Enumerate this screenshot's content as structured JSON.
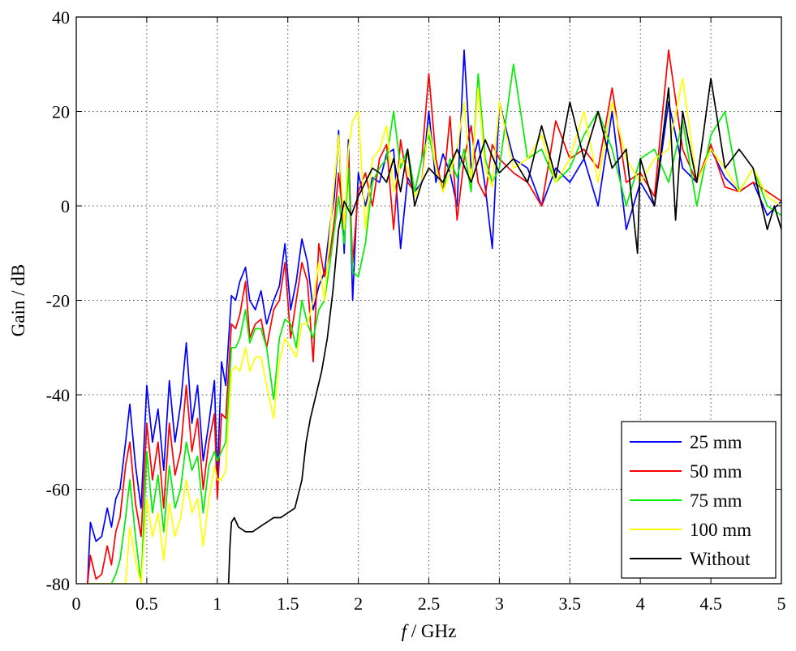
{
  "chart_data": {
    "type": "line",
    "title": "",
    "xlabel_italic": "f",
    "xlabel_rest": " / GHz",
    "ylabel": "Gain / dB",
    "xlim": [
      0,
      5
    ],
    "ylim": [
      -80,
      40
    ],
    "grid": true,
    "legend_placement": "bottom-right",
    "x_ticks": [
      0,
      0.5,
      1,
      1.5,
      2,
      2.5,
      3,
      3.5,
      4,
      4.5,
      5
    ],
    "x_tick_labels": [
      "0",
      "0.5",
      "1",
      "1.5",
      "2",
      "2.5",
      "3",
      "3.5",
      "4",
      "4.5",
      "5"
    ],
    "y_ticks": [
      -80,
      -60,
      -40,
      -20,
      0,
      20,
      40
    ],
    "y_tick_labels": [
      "-80",
      "-60",
      "-40",
      "-20",
      "0",
      "20",
      "40"
    ],
    "series": [
      {
        "name": "25 mm",
        "color": "#0000ff",
        "x": [
          0.08,
          0.1,
          0.14,
          0.18,
          0.22,
          0.25,
          0.28,
          0.31,
          0.35,
          0.38,
          0.42,
          0.46,
          0.5,
          0.54,
          0.58,
          0.62,
          0.66,
          0.7,
          0.74,
          0.78,
          0.82,
          0.86,
          0.9,
          0.94,
          0.98,
          1.0,
          1.03,
          1.06,
          1.1,
          1.13,
          1.16,
          1.2,
          1.23,
          1.27,
          1.31,
          1.35,
          1.4,
          1.44,
          1.48,
          1.52,
          1.56,
          1.6,
          1.64,
          1.68,
          1.72,
          1.76,
          1.8,
          1.83,
          1.86,
          1.9,
          1.93,
          1.96,
          2.0,
          2.05,
          2.1,
          2.15,
          2.2,
          2.25,
          2.3,
          2.35,
          2.4,
          2.45,
          2.5,
          2.55,
          2.6,
          2.65,
          2.7,
          2.75,
          2.8,
          2.85,
          2.9,
          2.95,
          3.0,
          3.1,
          3.2,
          3.3,
          3.4,
          3.5,
          3.6,
          3.7,
          3.8,
          3.9,
          4.0,
          4.1,
          4.2,
          4.3,
          4.4,
          4.5,
          4.6,
          4.7,
          4.8,
          4.9,
          5.0
        ],
        "y": [
          -80,
          -67,
          -71,
          -70,
          -64,
          -68,
          -62,
          -60,
          -50,
          -42,
          -55,
          -64,
          -38,
          -50,
          -43,
          -56,
          -37,
          -50,
          -42,
          -29,
          -46,
          -38,
          -54,
          -46,
          -37,
          -58,
          -33,
          -38,
          -19,
          -20,
          -16,
          -13,
          -20,
          -22,
          -18,
          -25,
          -20,
          -17,
          -8,
          -22,
          -16,
          -7,
          -12,
          -22,
          -17,
          -14,
          -4,
          2,
          16,
          -10,
          14,
          -20,
          7,
          0,
          6,
          5,
          11,
          12,
          -9,
          6,
          3,
          5,
          20,
          5,
          11,
          7,
          0,
          33,
          8,
          14,
          4,
          -9,
          22,
          10,
          8,
          0,
          8,
          5,
          10,
          0,
          20,
          -5,
          5,
          0,
          22,
          8,
          5,
          12,
          6,
          3,
          5,
          -2,
          1
        ]
      },
      {
        "name": "50 mm",
        "color": "#ff0000",
        "x": [
          0.08,
          0.1,
          0.14,
          0.18,
          0.22,
          0.25,
          0.28,
          0.31,
          0.35,
          0.38,
          0.42,
          0.46,
          0.5,
          0.54,
          0.58,
          0.62,
          0.66,
          0.7,
          0.74,
          0.78,
          0.82,
          0.86,
          0.9,
          0.94,
          0.98,
          1.0,
          1.03,
          1.06,
          1.1,
          1.13,
          1.16,
          1.2,
          1.23,
          1.27,
          1.31,
          1.35,
          1.4,
          1.44,
          1.48,
          1.52,
          1.56,
          1.6,
          1.64,
          1.68,
          1.72,
          1.76,
          1.8,
          1.83,
          1.86,
          1.9,
          1.93,
          1.96,
          2.0,
          2.05,
          2.1,
          2.15,
          2.2,
          2.25,
          2.3,
          2.35,
          2.4,
          2.45,
          2.5,
          2.55,
          2.6,
          2.65,
          2.7,
          2.75,
          2.8,
          2.85,
          2.9,
          2.95,
          3.0,
          3.1,
          3.2,
          3.3,
          3.4,
          3.5,
          3.6,
          3.7,
          3.8,
          3.9,
          4.0,
          4.1,
          4.2,
          4.3,
          4.4,
          4.5,
          4.6,
          4.7,
          4.8,
          4.9,
          5.0
        ],
        "y": [
          -80,
          -74,
          -79,
          -78,
          -72,
          -76,
          -69,
          -66,
          -55,
          -50,
          -63,
          -70,
          -46,
          -58,
          -50,
          -64,
          -46,
          -57,
          -52,
          -38,
          -52,
          -45,
          -60,
          -50,
          -44,
          -62,
          -44,
          -45,
          -25,
          -26,
          -23,
          -16,
          -28,
          -25,
          -24,
          -30,
          -22,
          -20,
          -12,
          -28,
          -20,
          -12,
          -16,
          -33,
          -8,
          -15,
          -10,
          -3,
          7,
          -5,
          11,
          -12,
          3,
          7,
          0,
          10,
          13,
          -5,
          14,
          5,
          3,
          10,
          28,
          10,
          3,
          19,
          -3,
          10,
          17,
          5,
          2,
          13,
          10,
          7,
          5,
          0,
          18,
          10,
          12,
          8,
          25,
          5,
          7,
          2,
          33,
          12,
          5,
          13,
          4,
          3,
          5,
          3,
          1
        ]
      },
      {
        "name": "75 mm",
        "color": "#00ee00",
        "x": [
          0.08,
          0.1,
          0.14,
          0.18,
          0.22,
          0.25,
          0.28,
          0.31,
          0.35,
          0.38,
          0.42,
          0.46,
          0.5,
          0.54,
          0.58,
          0.62,
          0.66,
          0.7,
          0.74,
          0.78,
          0.82,
          0.86,
          0.9,
          0.94,
          0.98,
          1.0,
          1.03,
          1.06,
          1.1,
          1.13,
          1.16,
          1.2,
          1.23,
          1.27,
          1.31,
          1.35,
          1.4,
          1.44,
          1.48,
          1.52,
          1.56,
          1.6,
          1.64,
          1.68,
          1.72,
          1.76,
          1.8,
          1.83,
          1.86,
          1.9,
          1.93,
          1.96,
          2.0,
          2.05,
          2.1,
          2.15,
          2.2,
          2.25,
          2.3,
          2.35,
          2.4,
          2.45,
          2.5,
          2.55,
          2.6,
          2.65,
          2.7,
          2.75,
          2.8,
          2.85,
          2.9,
          2.95,
          3.0,
          3.1,
          3.2,
          3.3,
          3.4,
          3.5,
          3.6,
          3.7,
          3.8,
          3.9,
          4.0,
          4.1,
          4.2,
          4.3,
          4.4,
          4.5,
          4.6,
          4.7,
          4.8,
          4.9,
          5.0
        ],
        "y": [
          -80,
          -80,
          -80,
          -80,
          -80,
          -80,
          -78,
          -75,
          -66,
          -58,
          -70,
          -80,
          -52,
          -65,
          -57,
          -69,
          -55,
          -64,
          -60,
          -50,
          -56,
          -53,
          -65,
          -55,
          -52,
          -54,
          -52,
          -50,
          -30,
          -30,
          -28,
          -22,
          -29,
          -26,
          -26,
          -30,
          -41,
          -28,
          -24,
          -25,
          -30,
          -20,
          -25,
          -28,
          -22,
          -20,
          -12,
          -5,
          2,
          -8,
          8,
          -14,
          -15,
          -8,
          5,
          8,
          10,
          20,
          8,
          12,
          3,
          10,
          15,
          8,
          3,
          10,
          6,
          12,
          3,
          28,
          10,
          5,
          8,
          30,
          10,
          12,
          5,
          8,
          15,
          20,
          12,
          0,
          10,
          12,
          5,
          18,
          0,
          15,
          20,
          3,
          8,
          0,
          -2
        ]
      },
      {
        "name": "100 mm",
        "color": "#ffff00",
        "x": [
          0.08,
          0.1,
          0.14,
          0.18,
          0.22,
          0.25,
          0.28,
          0.31,
          0.35,
          0.38,
          0.42,
          0.46,
          0.5,
          0.54,
          0.58,
          0.62,
          0.66,
          0.7,
          0.74,
          0.78,
          0.82,
          0.86,
          0.9,
          0.94,
          0.98,
          1.0,
          1.03,
          1.06,
          1.1,
          1.13,
          1.16,
          1.2,
          1.23,
          1.27,
          1.31,
          1.35,
          1.4,
          1.44,
          1.48,
          1.52,
          1.56,
          1.6,
          1.64,
          1.68,
          1.72,
          1.76,
          1.8,
          1.83,
          1.86,
          1.9,
          1.93,
          1.96,
          2.0,
          2.05,
          2.1,
          2.15,
          2.2,
          2.25,
          2.3,
          2.35,
          2.4,
          2.45,
          2.5,
          2.55,
          2.6,
          2.65,
          2.7,
          2.75,
          2.8,
          2.85,
          2.9,
          2.95,
          3.0,
          3.1,
          3.2,
          3.3,
          3.4,
          3.5,
          3.6,
          3.7,
          3.8,
          3.9,
          4.0,
          4.1,
          4.2,
          4.3,
          4.4,
          4.5,
          4.6,
          4.7,
          4.8,
          4.9,
          5.0
        ],
        "y": [
          -80,
          -80,
          -80,
          -80,
          -80,
          -80,
          -80,
          -80,
          -80,
          -68,
          -75,
          -80,
          -62,
          -70,
          -65,
          -75,
          -63,
          -70,
          -66,
          -58,
          -65,
          -62,
          -72,
          -62,
          -55,
          -58,
          -58,
          -56,
          -35,
          -34,
          -35,
          -30,
          -35,
          -32,
          -32,
          -38,
          -45,
          -33,
          -28,
          -30,
          -32,
          -25,
          -25,
          -20,
          -12,
          -20,
          -5,
          5,
          15,
          -5,
          12,
          18,
          20,
          -5,
          10,
          12,
          17,
          3,
          10,
          8,
          2,
          5,
          17,
          8,
          3,
          7,
          12,
          22,
          5,
          25,
          8,
          4,
          22,
          8,
          10,
          15,
          5,
          10,
          20,
          5,
          22,
          10,
          5,
          10,
          12,
          27,
          5,
          12,
          8,
          3,
          8,
          2,
          0
        ]
      },
      {
        "name": "Without",
        "color": "#000000",
        "x": [
          1.08,
          1.09,
          1.1,
          1.12,
          1.15,
          1.2,
          1.25,
          1.3,
          1.35,
          1.4,
          1.45,
          1.5,
          1.55,
          1.6,
          1.63,
          1.66,
          1.7,
          1.74,
          1.78,
          1.82,
          1.86,
          1.9,
          1.95,
          2.0,
          2.05,
          2.1,
          2.15,
          2.2,
          2.25,
          2.3,
          2.35,
          2.4,
          2.45,
          2.5,
          2.6,
          2.7,
          2.8,
          2.9,
          3.0,
          3.1,
          3.2,
          3.3,
          3.4,
          3.5,
          3.6,
          3.7,
          3.8,
          3.9,
          3.98,
          4.0,
          4.1,
          4.2,
          4.25,
          4.3,
          4.4,
          4.5,
          4.6,
          4.7,
          4.8,
          4.9,
          4.95,
          5.0
        ],
        "y": [
          -80,
          -72,
          -67,
          -66,
          -68,
          -69,
          -69,
          -68,
          -67,
          -66,
          -66,
          -65,
          -64,
          -58,
          -50,
          -45,
          -40,
          -35,
          -28,
          -18,
          -5,
          1,
          -2,
          2,
          5,
          8,
          7,
          5,
          10,
          3,
          12,
          0,
          5,
          8,
          5,
          12,
          5,
          14,
          7,
          10,
          5,
          17,
          6,
          22,
          10,
          20,
          8,
          12,
          -10,
          10,
          0,
          25,
          -3,
          20,
          5,
          27,
          8,
          12,
          8,
          -5,
          0,
          -5
        ]
      }
    ]
  }
}
